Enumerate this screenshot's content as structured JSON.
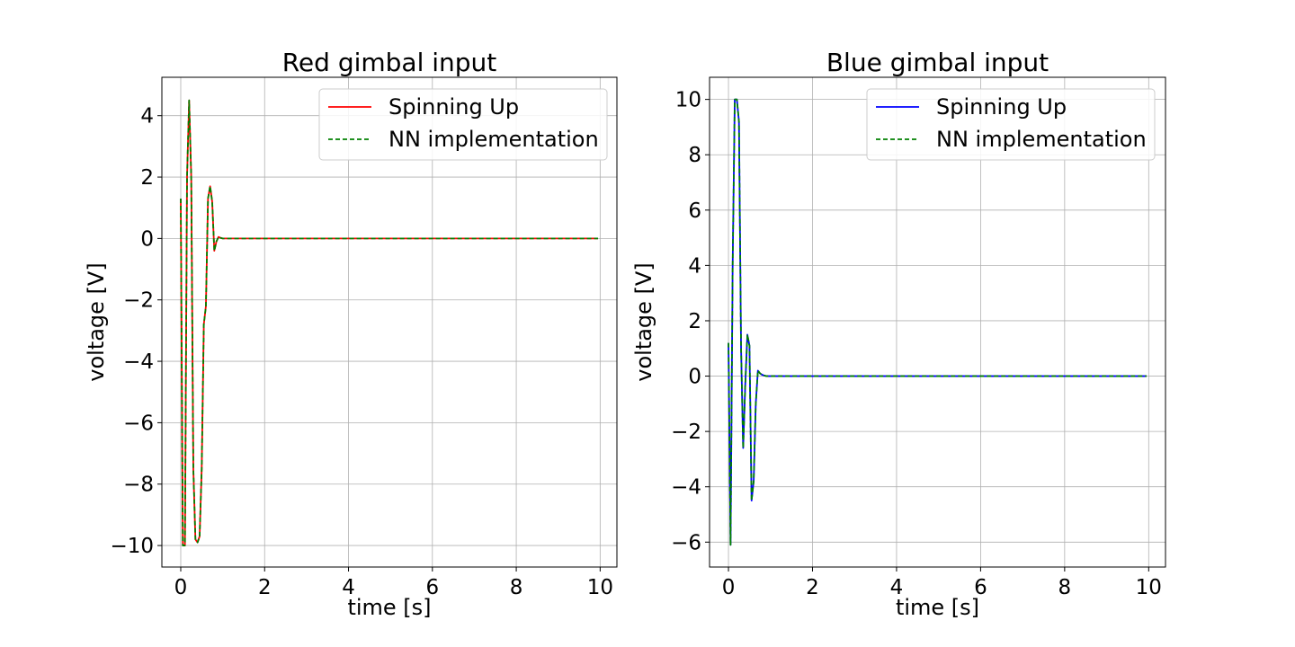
{
  "chart_data": [
    {
      "type": "line",
      "title": "Red gimbal input",
      "xlabel": "time [s]",
      "ylabel": "voltage [V]",
      "xlim": [
        -0.45,
        10.4
      ],
      "ylim": [
        -10.7,
        5.25
      ],
      "xticks": [
        0,
        2,
        4,
        6,
        8,
        10
      ],
      "yticks": [
        4,
        2,
        0,
        -2,
        -4,
        -6,
        -8,
        -10
      ],
      "xtick_labels": [
        "0",
        "2",
        "4",
        "6",
        "8",
        "10"
      ],
      "ytick_labels": [
        "4",
        "2",
        "0",
        "−2",
        "−4",
        "−6",
        "−8",
        "−10"
      ],
      "grid": true,
      "legend_position": "top-right",
      "series": [
        {
          "name": "Spinning Up",
          "color": "#ff0000",
          "style": "solid",
          "x": [
            0,
            0.05,
            0.1,
            0.15,
            0.2,
            0.25,
            0.3,
            0.35,
            0.4,
            0.45,
            0.5,
            0.55,
            0.6,
            0.65,
            0.7,
            0.75,
            0.8,
            0.85,
            0.9,
            0.95,
            1.0,
            1.1,
            1.3,
            2,
            4,
            6,
            8,
            9.95
          ],
          "y": [
            1.3,
            -10,
            -10,
            2.0,
            4.5,
            2.0,
            -7.5,
            -9.8,
            -9.9,
            -9.7,
            -7.5,
            -2.8,
            -2.2,
            1.3,
            1.7,
            1.2,
            -0.4,
            -0.1,
            0.05,
            0.02,
            0,
            0,
            0,
            0,
            0,
            0,
            0,
            0
          ]
        },
        {
          "name": "NN implementation",
          "color": "#008000",
          "style": "dashed",
          "x": [
            0,
            0.05,
            0.1,
            0.15,
            0.2,
            0.25,
            0.3,
            0.35,
            0.4,
            0.45,
            0.5,
            0.55,
            0.6,
            0.65,
            0.7,
            0.75,
            0.8,
            0.85,
            0.9,
            0.95,
            1.0,
            1.1,
            1.3,
            2,
            4,
            6,
            8,
            9.95
          ],
          "y": [
            1.3,
            -10,
            -10,
            2.0,
            4.5,
            2.0,
            -7.5,
            -9.8,
            -9.9,
            -9.7,
            -7.5,
            -2.8,
            -2.2,
            1.3,
            1.7,
            1.2,
            -0.4,
            -0.1,
            0.05,
            0.02,
            0,
            0,
            0,
            0,
            0,
            0,
            0,
            0
          ]
        }
      ]
    },
    {
      "type": "line",
      "title": "Blue gimbal input",
      "xlabel": "time [s]",
      "ylabel": "voltage [V]",
      "xlim": [
        -0.45,
        10.4
      ],
      "ylim": [
        -6.9,
        10.8
      ],
      "xticks": [
        0,
        2,
        4,
        6,
        8,
        10
      ],
      "yticks": [
        10,
        8,
        6,
        4,
        2,
        0,
        -2,
        -4,
        -6
      ],
      "xtick_labels": [
        "0",
        "2",
        "4",
        "6",
        "8",
        "10"
      ],
      "ytick_labels": [
        "10",
        "8",
        "6",
        "4",
        "2",
        "0",
        "−2",
        "−4",
        "−6"
      ],
      "grid": true,
      "legend_position": "top-right",
      "series": [
        {
          "name": "Spinning Up",
          "color": "#0000ff",
          "style": "solid",
          "x": [
            0,
            0.05,
            0.1,
            0.15,
            0.2,
            0.25,
            0.3,
            0.35,
            0.4,
            0.45,
            0.5,
            0.55,
            0.6,
            0.65,
            0.7,
            0.75,
            0.8,
            0.85,
            0.9,
            0.95,
            1.0,
            1.1,
            1.3,
            2,
            4,
            6,
            8,
            9.95
          ],
          "y": [
            1.2,
            -6.1,
            4.0,
            10.0,
            10.0,
            9.2,
            1.0,
            -2.6,
            -0.3,
            1.5,
            1.1,
            -4.5,
            -3.8,
            -1.0,
            0.2,
            0.1,
            0.05,
            0.02,
            0,
            0,
            0,
            0,
            0,
            0,
            0,
            0,
            0,
            0
          ]
        },
        {
          "name": "NN implementation",
          "color": "#008000",
          "style": "dashed",
          "x": [
            0,
            0.05,
            0.1,
            0.15,
            0.2,
            0.25,
            0.3,
            0.35,
            0.4,
            0.45,
            0.5,
            0.55,
            0.6,
            0.65,
            0.7,
            0.75,
            0.8,
            0.85,
            0.9,
            0.95,
            1.0,
            1.1,
            1.3,
            2,
            4,
            6,
            8,
            9.95
          ],
          "y": [
            1.2,
            -6.1,
            4.0,
            10.0,
            10.0,
            9.2,
            1.0,
            -2.6,
            -0.3,
            1.5,
            1.1,
            -4.5,
            -3.8,
            -1.0,
            0.2,
            0.1,
            0.05,
            0.02,
            0,
            0,
            0,
            0,
            0,
            0,
            0,
            0,
            0,
            0
          ]
        }
      ]
    }
  ]
}
